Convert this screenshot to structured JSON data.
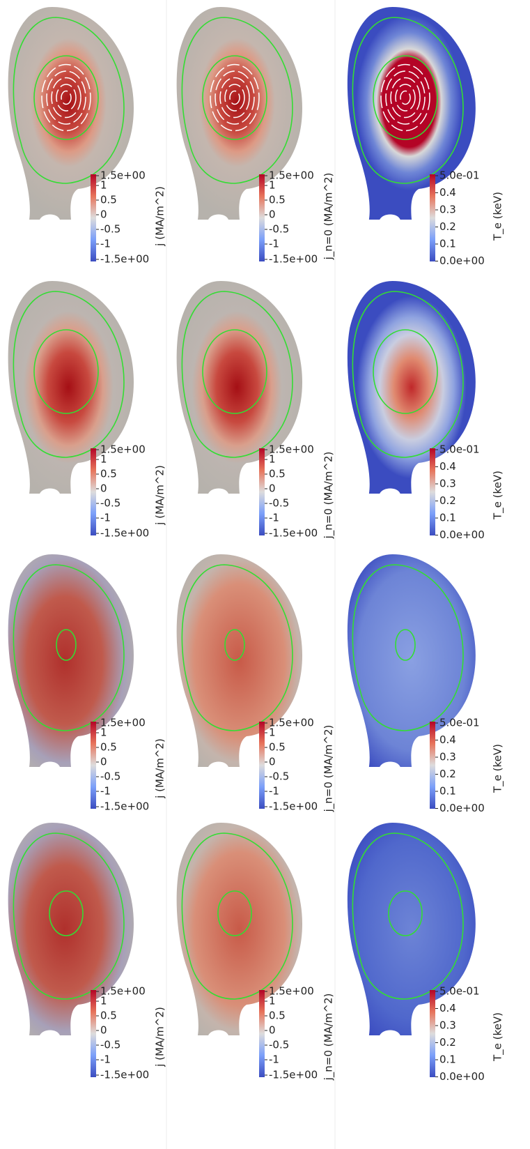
{
  "rows": [
    {
      "panels": [
        {
          "colorbar_title": "j (MA/m^2)",
          "ticks": [
            "1.5e+00",
            "1",
            "0.5",
            "0",
            "-0.5",
            "-1",
            "-1.5e+00"
          ]
        },
        {
          "colorbar_title": "j_n=0 (MA/m^2)",
          "ticks": [
            "1.5e+00",
            "1",
            "0.5",
            "0",
            "-0.5",
            "-1",
            "-1.5e+00"
          ]
        },
        {
          "colorbar_title": "T_e (keV)",
          "ticks": [
            "5.0e-01",
            "0.4",
            "0.3",
            "0.2",
            "0.1",
            "0.0e+00"
          ]
        }
      ]
    },
    {
      "panels": [
        {
          "colorbar_title": "j (MA/m^2)",
          "ticks": [
            "1.5e+00",
            "1",
            "0.5",
            "0",
            "-0.5",
            "-1",
            "-1.5e+00"
          ]
        },
        {
          "colorbar_title": "j_n=0 (MA/m^2)",
          "ticks": [
            "1.5e+00",
            "1",
            "0.5",
            "0",
            "-0.5",
            "-1",
            "-1.5e+00"
          ]
        },
        {
          "colorbar_title": "T_e (keV)",
          "ticks": [
            "5.0e-01",
            "0.4",
            "0.3",
            "0.2",
            "0.1",
            "0.0e+00"
          ]
        }
      ]
    },
    {
      "panels": [
        {
          "colorbar_title": "j (MA/m^2)",
          "ticks": [
            "1.5e+00",
            "1",
            "0.5",
            "0",
            "-0.5",
            "-1",
            "-1.5e+00"
          ]
        },
        {
          "colorbar_title": "j_n=0 (MA/m^2)",
          "ticks": [
            "1.5e+00",
            "1",
            "0.5",
            "0",
            "-0.5",
            "-1",
            "-1.5e+00"
          ]
        },
        {
          "colorbar_title": "T_e (keV)",
          "ticks": [
            "5.0e-01",
            "0.4",
            "0.3",
            "0.2",
            "0.1",
            "0.0e+00"
          ]
        }
      ]
    },
    {
      "panels": [
        {
          "colorbar_title": "j (MA/m^2)",
          "ticks": [
            "1.5e+00",
            "1",
            "0.5",
            "0",
            "-0.5",
            "-1",
            "-1.5e+00"
          ]
        },
        {
          "colorbar_title": "j_n=0 (MA/m^2)",
          "ticks": [
            "1.5e+00",
            "1",
            "0.5",
            "0",
            "-0.5",
            "-1",
            "-1.5e+00"
          ]
        },
        {
          "colorbar_title": "T_e (keV)",
          "ticks": [
            "5.0e-01",
            "0.4",
            "0.3",
            "0.2",
            "0.1",
            "0.0e+00"
          ]
        }
      ]
    }
  ]
}
